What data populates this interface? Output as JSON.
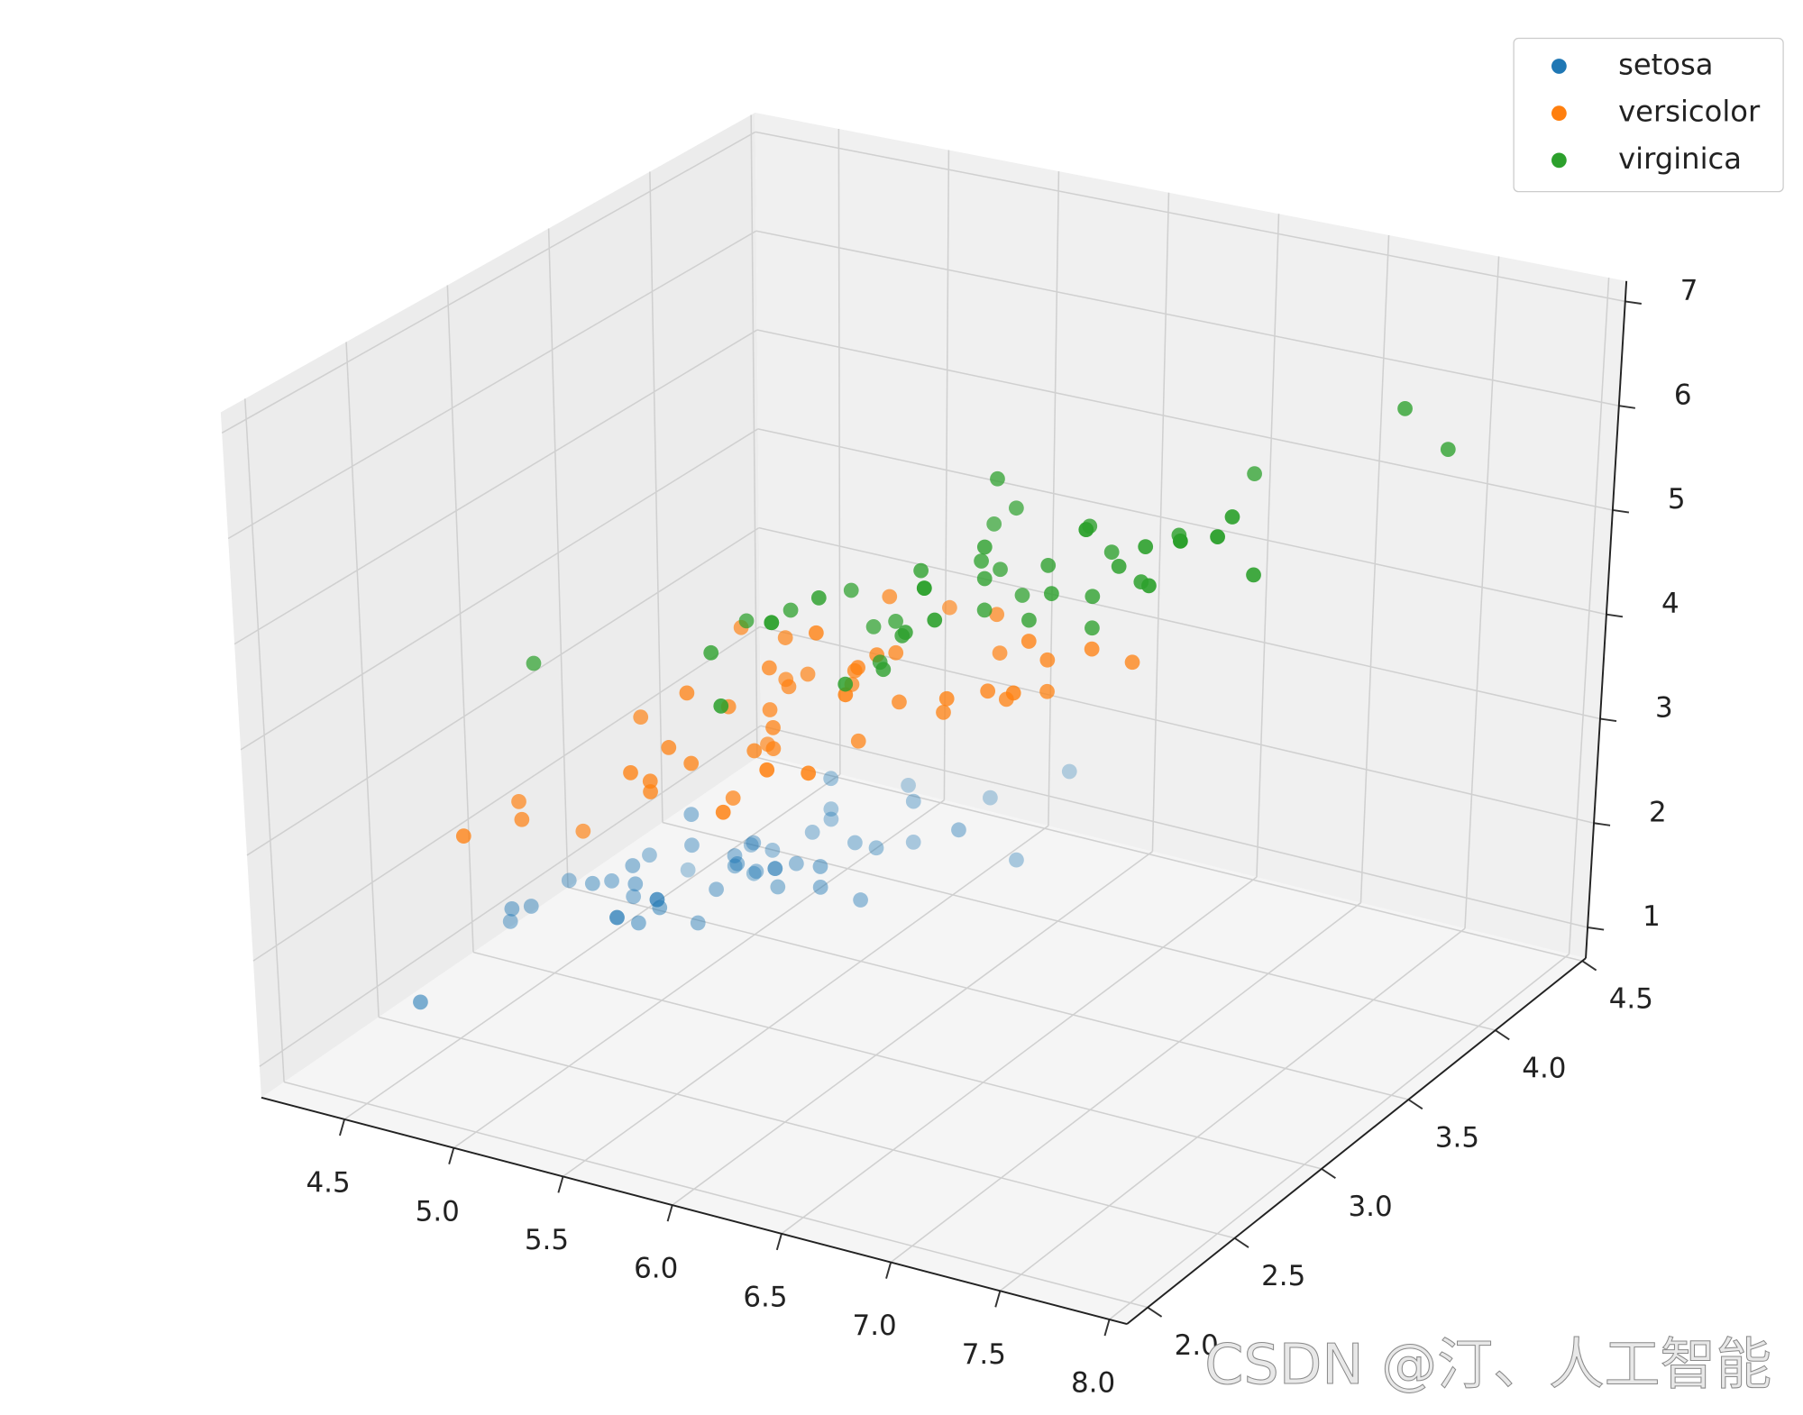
{
  "chart_data": {
    "type": "scatter3d",
    "series": [
      {
        "name": "setosa",
        "color": "#1f77b4",
        "x": [
          5.1,
          4.9,
          4.7,
          4.6,
          5.0,
          5.4,
          4.6,
          5.0,
          4.4,
          4.9,
          5.4,
          4.8,
          4.8,
          4.3,
          5.8,
          5.7,
          5.4,
          5.1,
          5.7,
          5.1,
          5.4,
          5.1,
          4.6,
          5.1,
          4.8,
          5.0,
          5.0,
          5.2,
          5.2,
          4.7,
          4.8,
          5.4,
          5.2,
          5.5,
          4.9,
          5.0,
          5.5,
          4.9,
          4.4,
          5.1,
          5.0,
          4.5,
          4.4,
          5.0,
          5.1,
          4.8,
          5.1,
          4.6,
          5.3,
          5.0
        ],
        "y": [
          3.5,
          3.0,
          3.2,
          3.1,
          3.6,
          3.9,
          3.4,
          3.4,
          2.9,
          3.1,
          3.7,
          3.4,
          3.0,
          3.0,
          4.0,
          4.4,
          3.9,
          3.5,
          3.8,
          3.8,
          3.4,
          3.7,
          3.6,
          3.3,
          3.4,
          3.0,
          3.4,
          3.5,
          3.4,
          3.2,
          3.1,
          3.4,
          4.1,
          4.2,
          3.1,
          3.2,
          3.5,
          3.6,
          3.0,
          3.4,
          3.5,
          2.3,
          3.2,
          3.5,
          3.8,
          3.0,
          3.8,
          3.2,
          3.7,
          3.3
        ],
        "z": [
          1.4,
          1.4,
          1.3,
          1.5,
          1.4,
          1.7,
          1.4,
          1.5,
          1.4,
          1.5,
          1.5,
          1.6,
          1.4,
          1.1,
          1.2,
          1.5,
          1.3,
          1.4,
          1.7,
          1.5,
          1.7,
          1.5,
          1.0,
          1.7,
          1.9,
          1.6,
          1.6,
          1.5,
          1.4,
          1.6,
          1.6,
          1.5,
          1.5,
          1.4,
          1.5,
          1.2,
          1.3,
          1.4,
          1.3,
          1.5,
          1.3,
          1.3,
          1.3,
          1.6,
          1.9,
          1.4,
          1.6,
          1.4,
          1.5,
          1.4
        ]
      },
      {
        "name": "versicolor",
        "color": "#ff7f0e",
        "x": [
          7.0,
          6.4,
          6.9,
          5.5,
          6.5,
          5.7,
          6.3,
          4.9,
          6.6,
          5.2,
          5.0,
          5.9,
          6.0,
          6.1,
          5.6,
          6.7,
          5.6,
          5.8,
          6.2,
          5.6,
          5.9,
          6.1,
          6.3,
          6.1,
          6.4,
          6.6,
          6.8,
          6.7,
          6.0,
          5.7,
          5.5,
          5.5,
          5.8,
          6.0,
          5.4,
          6.0,
          6.7,
          6.3,
          5.6,
          5.5,
          5.5,
          6.1,
          5.8,
          5.0,
          5.6,
          5.7,
          5.7,
          6.2,
          5.1,
          5.7
        ],
        "y": [
          3.2,
          3.2,
          3.1,
          2.3,
          2.8,
          2.8,
          3.3,
          2.4,
          2.9,
          2.7,
          2.0,
          3.0,
          2.2,
          2.9,
          2.9,
          3.1,
          3.0,
          2.7,
          2.2,
          2.5,
          3.2,
          2.8,
          2.5,
          2.8,
          2.9,
          3.0,
          2.8,
          3.0,
          2.9,
          2.6,
          2.4,
          2.4,
          2.7,
          2.7,
          3.0,
          3.4,
          3.1,
          2.3,
          3.0,
          2.5,
          2.6,
          3.0,
          2.6,
          2.3,
          2.7,
          3.0,
          2.9,
          2.9,
          2.5,
          2.8
        ],
        "z": [
          4.7,
          4.5,
          4.9,
          4.0,
          4.6,
          4.5,
          4.7,
          3.3,
          4.6,
          3.9,
          3.5,
          4.2,
          4.0,
          4.7,
          3.6,
          4.4,
          4.5,
          4.1,
          4.5,
          3.9,
          4.8,
          4.0,
          4.9,
          4.7,
          4.3,
          4.4,
          4.8,
          5.0,
          4.5,
          3.5,
          3.8,
          3.7,
          3.9,
          5.1,
          4.5,
          4.5,
          4.7,
          4.4,
          4.1,
          4.0,
          4.4,
          4.6,
          4.0,
          3.3,
          4.2,
          4.2,
          4.2,
          4.3,
          3.0,
          4.1
        ]
      },
      {
        "name": "virginica",
        "color": "#2ca02c",
        "x": [
          6.3,
          5.8,
          7.1,
          6.3,
          6.5,
          7.6,
          4.9,
          7.3,
          6.7,
          7.2,
          6.5,
          6.4,
          6.8,
          5.7,
          5.8,
          6.4,
          6.5,
          7.7,
          7.7,
          6.0,
          6.9,
          5.6,
          7.7,
          6.3,
          6.7,
          7.2,
          6.2,
          6.1,
          6.4,
          7.2,
          7.4,
          7.9,
          6.4,
          6.3,
          6.1,
          7.7,
          6.3,
          6.4,
          6.0,
          6.9,
          6.7,
          6.9,
          5.8,
          6.8,
          6.7,
          6.7,
          6.3,
          6.5,
          6.2,
          5.9
        ],
        "y": [
          3.3,
          2.7,
          3.0,
          2.9,
          3.0,
          3.0,
          2.5,
          2.9,
          2.5,
          3.6,
          3.2,
          2.7,
          3.0,
          2.5,
          2.8,
          3.2,
          3.0,
          3.8,
          2.6,
          2.2,
          3.2,
          2.8,
          2.8,
          2.7,
          3.3,
          3.2,
          2.8,
          3.0,
          2.8,
          3.0,
          2.8,
          3.8,
          2.8,
          2.8,
          2.6,
          3.0,
          3.4,
          3.1,
          3.0,
          3.1,
          3.1,
          3.1,
          2.7,
          3.2,
          3.3,
          3.0,
          2.5,
          3.0,
          3.4,
          3.0
        ],
        "z": [
          6.0,
          5.1,
          5.9,
          5.6,
          5.8,
          6.6,
          4.5,
          6.3,
          5.8,
          6.1,
          5.1,
          5.3,
          5.5,
          5.0,
          5.1,
          5.3,
          5.5,
          6.7,
          6.9,
          5.0,
          5.7,
          4.9,
          6.7,
          4.9,
          5.7,
          6.0,
          4.8,
          4.9,
          5.6,
          5.8,
          6.1,
          6.4,
          5.6,
          5.1,
          5.6,
          6.1,
          5.6,
          5.5,
          4.8,
          5.4,
          5.6,
          5.1,
          5.1,
          5.9,
          5.7,
          5.2,
          5.0,
          5.2,
          5.4,
          5.1
        ]
      }
    ],
    "xlim": [
      4.12,
      8.08
    ],
    "ylim": [
      1.88,
      4.52
    ],
    "zlim": [
      0.705,
      7.195
    ],
    "xticks": [
      4.5,
      {
        "value": 5,
        "label": "5.0"
      },
      5.5,
      {
        "value": 6,
        "label": "6.0"
      },
      6.5,
      {
        "value": 7,
        "label": "7.0"
      },
      7.5,
      {
        "value": 8,
        "label": "8.0"
      }
    ],
    "yticks": [
      {
        "value": 2,
        "label": "2.0"
      },
      2.5,
      {
        "value": 3,
        "label": "3.0"
      },
      3.5,
      {
        "value": 4,
        "label": "4.0"
      },
      4.5
    ],
    "zticks": [
      1,
      2,
      3,
      4,
      5,
      6,
      7
    ],
    "grid": true,
    "legend": "upper right",
    "watermark": "CSDN @汀、人工智能"
  }
}
